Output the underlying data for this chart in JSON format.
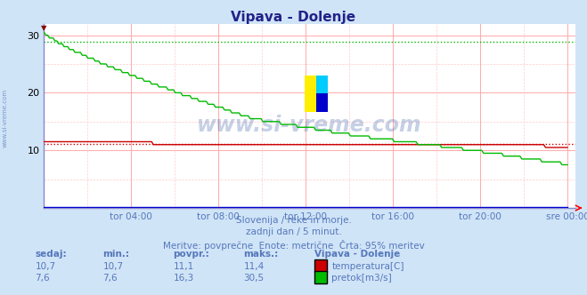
{
  "title": "Vipava - Dolenje",
  "bg_color": "#d0e4f7",
  "plot_bg_color": "#ffffff",
  "grid_color_major": "#ffaaaa",
  "xlabel_color": "#5577bb",
  "text_color": "#5577bb",
  "x_ticks_labels": [
    "tor 04:00",
    "tor 08:00",
    "tor 12:00",
    "tor 16:00",
    "tor 20:00",
    "sre 00:00"
  ],
  "y_ticks": [
    10,
    20,
    30
  ],
  "temp_color": "#cc0000",
  "flow_color": "#00bb00",
  "blue_color": "#0000cc",
  "temp_avg": 11.1,
  "temp_min": 10.7,
  "temp_max": 11.4,
  "temp_current": 10.7,
  "flow_avg": 28.9,
  "flow_min": 7.6,
  "flow_max": 30.5,
  "flow_current": 7.6,
  "flow_display_avg": 16.3,
  "subtitle1": "Slovenija / reke in morje.",
  "subtitle2": "zadnji dan / 5 minut.",
  "subtitle3": "Meritve: povprečne  Enote: metrične  Črta: 95% meritev",
  "watermark": "www.si-vreme.com",
  "y_max": 32,
  "y_min": 0
}
